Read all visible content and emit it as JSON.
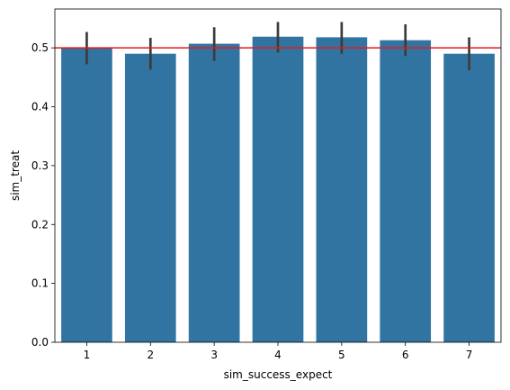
{
  "chart_data": {
    "type": "bar",
    "xlabel": "sim_success_expect",
    "ylabel": "sim_treat",
    "categories": [
      "1",
      "2",
      "3",
      "4",
      "5",
      "6",
      "7"
    ],
    "values": [
      0.5,
      0.49,
      0.507,
      0.519,
      0.518,
      0.513,
      0.49
    ],
    "error_low": [
      0.472,
      0.463,
      0.478,
      0.492,
      0.49,
      0.486,
      0.462
    ],
    "error_high": [
      0.527,
      0.517,
      0.535,
      0.544,
      0.544,
      0.54,
      0.518
    ],
    "reference_line": 0.5,
    "ylim": [
      0,
      0.566
    ],
    "yticks": [
      0.0,
      0.1,
      0.2,
      0.3,
      0.4,
      0.5
    ],
    "ytick_labels": [
      "0.0",
      "0.1",
      "0.2",
      "0.3",
      "0.4",
      "0.5"
    ],
    "colors": {
      "bar": "#3274a1",
      "errorbar": "#3c3c3c",
      "reference_line": "#e41a1c",
      "axis": "#000000"
    }
  }
}
